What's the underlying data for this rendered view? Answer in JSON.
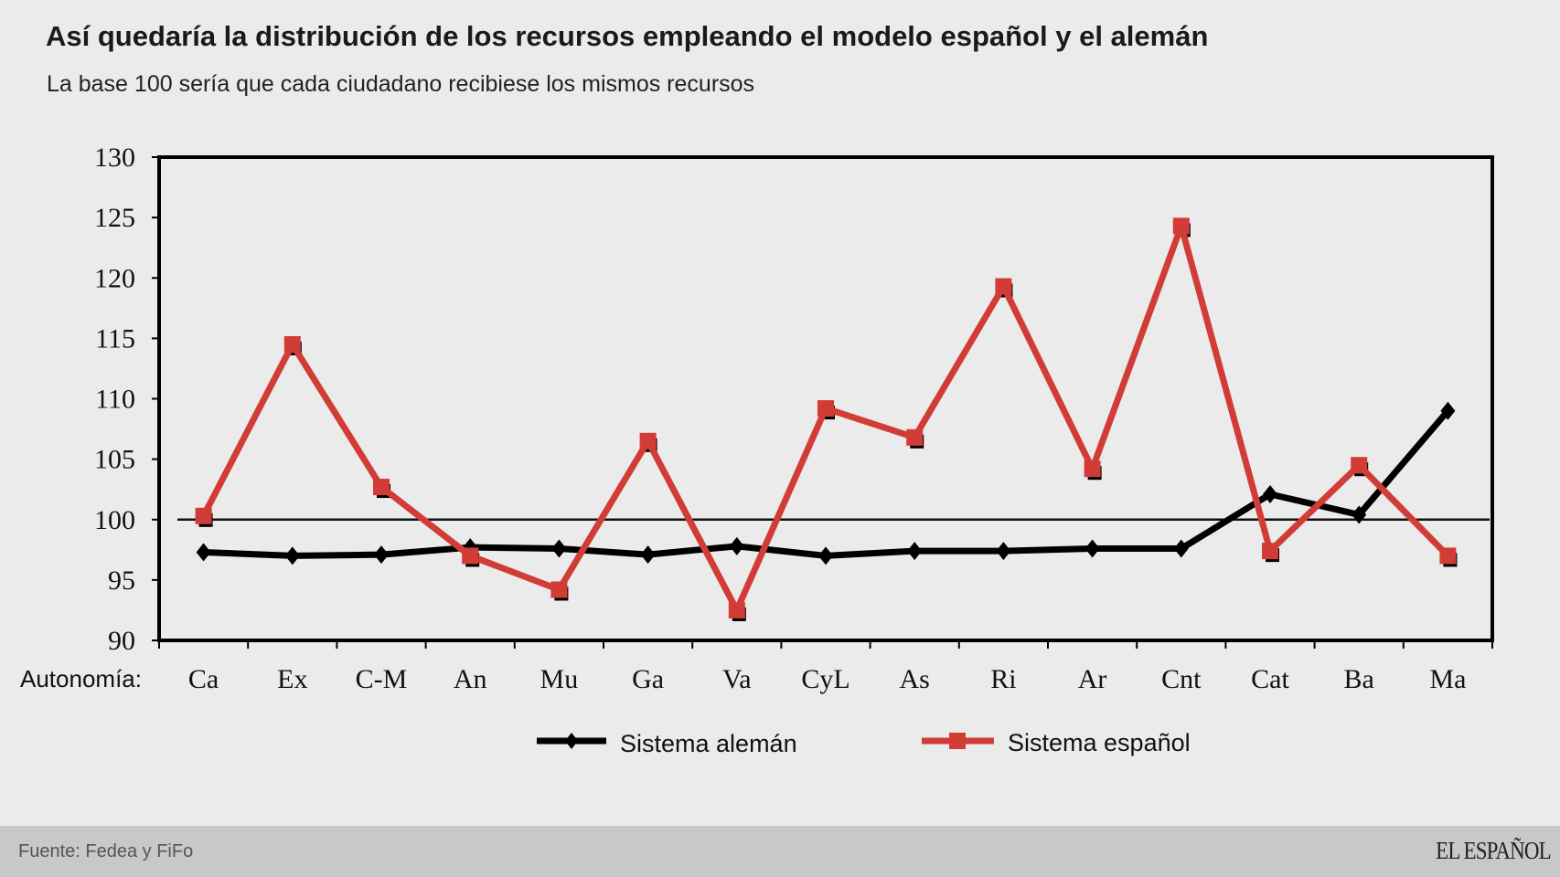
{
  "header": {
    "title": "Así quedaría la distribución de los recursos empleando el modelo español y el alemán",
    "subtitle": "La base 100 sería que cada ciudadano recibiese los mismos recursos"
  },
  "chart_data": {
    "type": "line",
    "xlabel": "Autonomía:",
    "categories": [
      "Ca",
      "Ex",
      "C-M",
      "An",
      "Mu",
      "Ga",
      "Va",
      "CyL",
      "As",
      "Ri",
      "Ar",
      "Cnt",
      "Cat",
      "Ba",
      "Ma"
    ],
    "ylim": [
      90,
      130
    ],
    "yticks": [
      90,
      95,
      100,
      105,
      110,
      115,
      120,
      125,
      130
    ],
    "reference_line": 100,
    "grid": false,
    "legend_position": "bottom",
    "series": [
      {
        "name": "Sistema alemán",
        "color": "#000000",
        "marker": "diamond",
        "values": [
          97.3,
          97.0,
          97.1,
          97.7,
          97.6,
          97.1,
          97.8,
          97.0,
          97.4,
          97.4,
          97.6,
          97.6,
          102.1,
          100.4,
          109.0
        ]
      },
      {
        "name": "Sistema español",
        "color": "#d23c36",
        "marker": "square",
        "values": [
          100.3,
          114.5,
          102.7,
          97.0,
          94.2,
          106.5,
          92.5,
          109.2,
          106.8,
          119.3,
          104.2,
          124.3,
          97.4,
          104.5,
          97.0
        ]
      }
    ]
  },
  "footer": {
    "source": "Fuente: Fedea y FiFo",
    "logo": "EL ESPAÑOL"
  }
}
